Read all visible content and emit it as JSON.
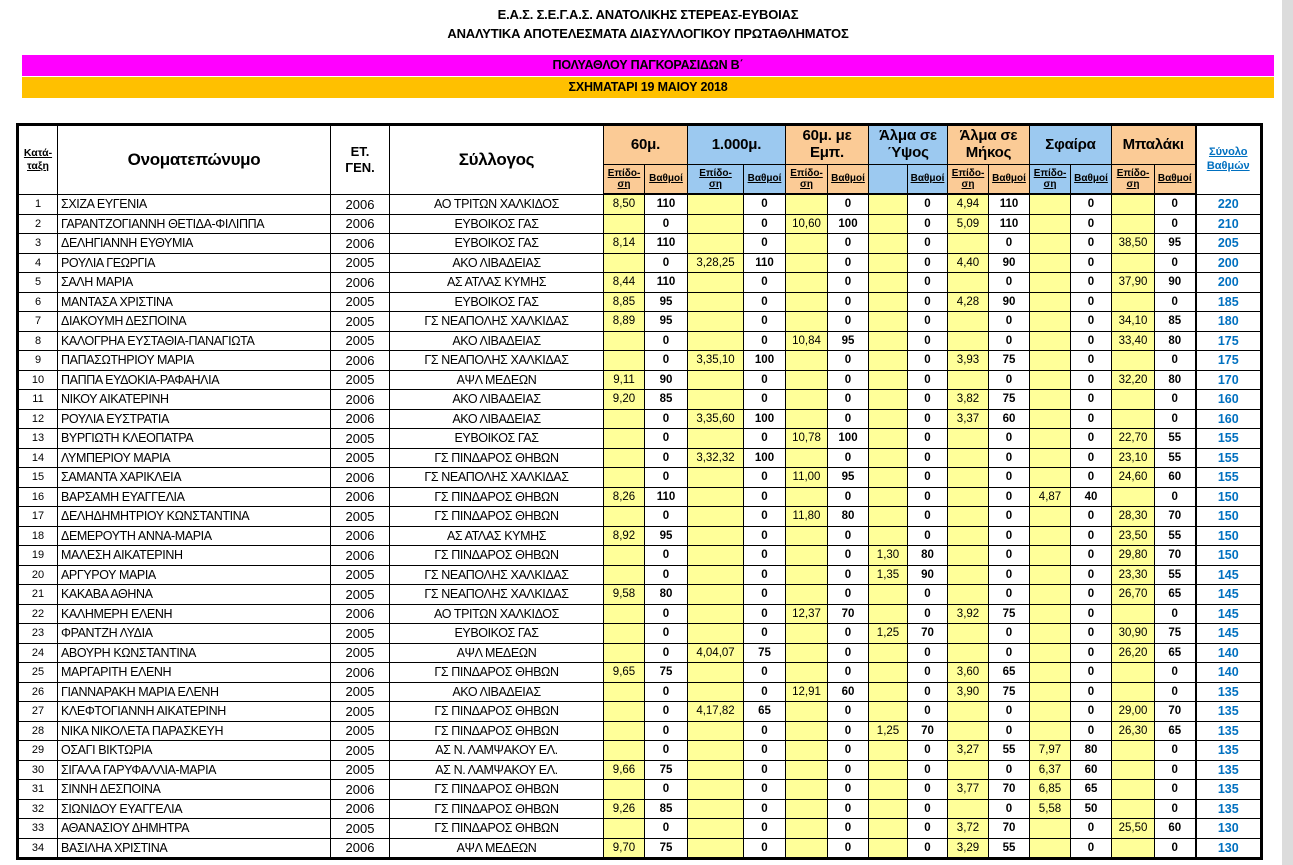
{
  "page": {
    "title_line1": "Ε.Α.Σ. Σ.Ε.Γ.Α.Σ. ΑΝΑΤΟΛΙΚΗΣ ΣΤΕΡΕΑΣ-ΕΥΒΟΙΑΣ",
    "title_line2": "ΑΝΑΛΥΤΙΚΑ ΑΠΟΤΕΛΕΣΜΑΤΑ ΔΙΑΣΥΛΛΟΓΙΚΟΥ ΠΡΩΤΑΘΛΗΜΑΤΟΣ",
    "banner_category": "ΠΟΛΥΑΘΛΟΥ ΠΑΓΚΟΡΑΣΙΔΩΝ  Β΄",
    "banner_event": "ΣΧΗΜΑΤΑΡΙ 19 ΜΑΙΟΥ 2018",
    "colors": {
      "banner_category_bg": "#FF00FF",
      "banner_event_bg": "#FFC000",
      "event_group_orange": "#FBCB96",
      "event_group_blue": "#9CC9F0",
      "performance_cell_bg": "#FFFF99",
      "total_text": "#0070C0"
    }
  },
  "table": {
    "headers": {
      "rank": "Κατά-\nταξη",
      "name": "Ονοματεπώνυμο",
      "year": "ΕΤ.\nΓΕΝ.",
      "club": "Σύλλογος",
      "total": "Σύνολο\nΒαθμών",
      "sub_perf": "Επίδο-\nση",
      "sub_points": "Βαθμοί"
    },
    "events": [
      {
        "label": "60μ.",
        "color": "orange",
        "sub_perf": "Επίδο-\nση",
        "sub_points": "Βαθμοί"
      },
      {
        "label": "1.000μ.",
        "color": "blue",
        "sub_perf": "Επίδο-\nση",
        "sub_points": "Βαθμοί"
      },
      {
        "label": "60μ. με Εμπ.",
        "color": "orange",
        "sub_perf": "Επίδο-\nση",
        "sub_points": "Βαθμοί"
      },
      {
        "label": "Άλμα σε\nΎψος",
        "color": "blue",
        "sub_perf": "",
        "sub_points": "Βαθμοί"
      },
      {
        "label": "Άλμα σε\nΜήκος",
        "color": "orange",
        "sub_perf": "Επίδο-\nση",
        "sub_points": "Βαθμοί"
      },
      {
        "label": "Σφαίρα",
        "color": "blue",
        "sub_perf": "Επίδο-\nση",
        "sub_points": "Βαθμοί"
      },
      {
        "label": "Μπαλάκι",
        "color": "orange",
        "sub_perf": "Επίδο-\nση",
        "sub_points": "Βαθμοί"
      }
    ],
    "rows": [
      {
        "rank": "1",
        "name": "ΣΧΙΖΑ ΕΥΓΕΝΙΑ",
        "year": "2006",
        "club": "ΑΟ ΤΡΙΤΩΝ ΧΑΛΚΙΔΟΣ",
        "marks": [
          "8,50",
          "110",
          "",
          "0",
          "",
          "0",
          "",
          "0",
          "4,94",
          "110",
          "",
          "0",
          "",
          "0"
        ],
        "total": "220"
      },
      {
        "rank": "2",
        "name": "ΓΑΡΑΝΤΖΟΓΙΑΝΝΗ ΘΕΤΙΔΑ-ΦΙΛΙΠΠΑ",
        "year": "2006",
        "club": "ΕΥΒΟΙΚΟΣ ΓΑΣ",
        "marks": [
          "",
          "0",
          "",
          "0",
          "10,60",
          "100",
          "",
          "0",
          "5,09",
          "110",
          "",
          "0",
          "",
          "0"
        ],
        "total": "210"
      },
      {
        "rank": "3",
        "name": "ΔΕΛΗΓΙΑΝΝΗ ΕΥΘΥΜΙΑ",
        "year": "2006",
        "club": "ΕΥΒΟΙΚΟΣ ΓΑΣ",
        "marks": [
          "8,14",
          "110",
          "",
          "0",
          "",
          "0",
          "",
          "0",
          "",
          "0",
          "",
          "0",
          "38,50",
          "95"
        ],
        "total": "205"
      },
      {
        "rank": "4",
        "name": "ΡΟΥΛΙΑ ΓΕΩΡΓΙΑ",
        "year": "2005",
        "club": "ΑΚΟ ΛΙΒΑΔΕΙΑΣ",
        "marks": [
          "",
          "0",
          "3,28,25",
          "110",
          "",
          "0",
          "",
          "0",
          "4,40",
          "90",
          "",
          "0",
          "",
          "0"
        ],
        "total": "200"
      },
      {
        "rank": "5",
        "name": "ΣΑΛΗ ΜΑΡΙΑ",
        "year": "2006",
        "club": "ΑΣ ΑΤΛΑΣ ΚΥΜΗΣ",
        "marks": [
          "8,44",
          "110",
          "",
          "0",
          "",
          "0",
          "",
          "0",
          "",
          "0",
          "",
          "0",
          "37,90",
          "90"
        ],
        "total": "200"
      },
      {
        "rank": "6",
        "name": "ΜΑΝΤΑΣΑ ΧΡΙΣΤΙΝΑ",
        "year": "2005",
        "club": "ΕΥΒΟΙΚΟΣ ΓΑΣ",
        "marks": [
          "8,85",
          "95",
          "",
          "0",
          "",
          "0",
          "",
          "0",
          "4,28",
          "90",
          "",
          "0",
          "",
          "0"
        ],
        "total": "185"
      },
      {
        "rank": "7",
        "name": "ΔΙΑΚΟΥΜΗ ΔΕΣΠΟΙΝΑ",
        "year": "2005",
        "club": "ΓΣ ΝΕΑΠΟΛΗΣ ΧΑΛΚΙΔΑΣ",
        "marks": [
          "8,89",
          "95",
          "",
          "0",
          "",
          "0",
          "",
          "0",
          "",
          "0",
          "",
          "0",
          "34,10",
          "85"
        ],
        "total": "180"
      },
      {
        "rank": "8",
        "name": "ΚΑΛΟΓΡΗΑ ΕΥΣΤΑΘΙΑ-ΠΑΝΑΓΙΩΤΑ",
        "year": "2005",
        "club": "ΑΚΟ ΛΙΒΑΔΕΙΑΣ",
        "marks": [
          "",
          "0",
          "",
          "0",
          "10,84",
          "95",
          "",
          "0",
          "",
          "0",
          "",
          "0",
          "33,40",
          "80"
        ],
        "total": "175"
      },
      {
        "rank": "9",
        "name": "ΠΑΠΑΣΩΤΗΡΙΟΥ ΜΑΡΙΑ",
        "year": "2006",
        "club": "ΓΣ ΝΕΑΠΟΛΗΣ ΧΑΛΚΙΔΑΣ",
        "marks": [
          "",
          "0",
          "3,35,10",
          "100",
          "",
          "0",
          "",
          "0",
          "3,93",
          "75",
          "",
          "0",
          "",
          "0"
        ],
        "total": "175"
      },
      {
        "rank": "10",
        "name": "ΠΑΠΠΑ ΕΥΔΟΚΙΑ-ΡΑΦΑΗΛΙΑ",
        "year": "2005",
        "club": "ΑΨΛ ΜΕΔΕΩΝ",
        "marks": [
          "9,11",
          "90",
          "",
          "0",
          "",
          "0",
          "",
          "0",
          "",
          "0",
          "",
          "0",
          "32,20",
          "80"
        ],
        "total": "170"
      },
      {
        "rank": "11",
        "name": "ΝΙΚΟΥ ΑΙΚΑΤΕΡΙΝΗ",
        "year": "2006",
        "club": "ΑΚΟ ΛΙΒΑΔΕΙΑΣ",
        "marks": [
          "9,20",
          "85",
          "",
          "0",
          "",
          "0",
          "",
          "0",
          "3,82",
          "75",
          "",
          "0",
          "",
          "0"
        ],
        "total": "160"
      },
      {
        "rank": "12",
        "name": "ΡΟΥΛΙΑ ΕΥΣΤΡΑΤΙΑ",
        "year": "2006",
        "club": "ΑΚΟ ΛΙΒΑΔΕΙΑΣ",
        "marks": [
          "",
          "0",
          "3,35,60",
          "100",
          "",
          "0",
          "",
          "0",
          "3,37",
          "60",
          "",
          "0",
          "",
          "0"
        ],
        "total": "160"
      },
      {
        "rank": "13",
        "name": "ΒΥΡΓΙΩΤΗ ΚΛΕΟΠΑΤΡΑ",
        "year": "2005",
        "club": "ΕΥΒΟΙΚΟΣ ΓΑΣ",
        "marks": [
          "",
          "0",
          "",
          "0",
          "10,78",
          "100",
          "",
          "0",
          "",
          "0",
          "",
          "0",
          "22,70",
          "55"
        ],
        "total": "155"
      },
      {
        "rank": "14",
        "name": "ΛΥΜΠΕΡΙΟΥ ΜΑΡΙΑ",
        "year": "2005",
        "club": "ΓΣ ΠΙΝΔΑΡΟΣ ΘΗΒΩΝ",
        "marks": [
          "",
          "0",
          "3,32,32",
          "100",
          "",
          "0",
          "",
          "0",
          "",
          "0",
          "",
          "0",
          "23,10",
          "55"
        ],
        "total": "155"
      },
      {
        "rank": "15",
        "name": "ΣΑΜΑΝΤΑ ΧΑΡΙΚΛΕΙΑ",
        "year": "2006",
        "club": "ΓΣ ΝΕΑΠΟΛΗΣ ΧΑΛΚΙΔΑΣ",
        "marks": [
          "",
          "0",
          "",
          "0",
          "11,00",
          "95",
          "",
          "0",
          "",
          "0",
          "",
          "0",
          "24,60",
          "60"
        ],
        "total": "155"
      },
      {
        "rank": "16",
        "name": "ΒΑΡΣΑΜΗ ΕΥΑΓΓΕΛΙΑ",
        "year": "2006",
        "club": "ΓΣ ΠΙΝΔΑΡΟΣ ΘΗΒΩΝ",
        "marks": [
          "8,26",
          "110",
          "",
          "0",
          "",
          "0",
          "",
          "0",
          "",
          "0",
          "4,87",
          "40",
          "",
          "0"
        ],
        "total": "150"
      },
      {
        "rank": "17",
        "name": "ΔΕΛΗΔΗΜΗΤΡΙΟΥ ΚΩΝΣΤΑΝΤΙΝΑ",
        "year": "2005",
        "club": "ΓΣ ΠΙΝΔΑΡΟΣ ΘΗΒΩΝ",
        "marks": [
          "",
          "0",
          "",
          "0",
          "11,80",
          "80",
          "",
          "0",
          "",
          "0",
          "",
          "0",
          "28,30",
          "70"
        ],
        "total": "150"
      },
      {
        "rank": "18",
        "name": "ΔΕΜΕΡΟΥΤΗ ΑΝΝΑ-ΜΑΡΙΑ",
        "year": "2006",
        "club": "ΑΣ ΑΤΛΑΣ ΚΥΜΗΣ",
        "marks": [
          "8,92",
          "95",
          "",
          "0",
          "",
          "0",
          "",
          "0",
          "",
          "0",
          "",
          "0",
          "23,50",
          "55"
        ],
        "total": "150"
      },
      {
        "rank": "19",
        "name": "ΜΑΛΕΣΗ ΑΙΚΑΤΕΡΙΝΗ",
        "year": "2006",
        "club": "ΓΣ ΠΙΝΔΑΡΟΣ ΘΗΒΩΝ",
        "marks": [
          "",
          "0",
          "",
          "0",
          "",
          "0",
          "1,30",
          "80",
          "",
          "0",
          "",
          "0",
          "29,80",
          "70"
        ],
        "total": "150"
      },
      {
        "rank": "20",
        "name": "ΑΡΓΥΡΟΥ ΜΑΡΙΑ",
        "year": "2005",
        "club": "ΓΣ ΝΕΑΠΟΛΗΣ ΧΑΛΚΙΔΑΣ",
        "marks": [
          "",
          "0",
          "",
          "0",
          "",
          "0",
          "1,35",
          "90",
          "",
          "0",
          "",
          "0",
          "23,30",
          "55"
        ],
        "total": "145"
      },
      {
        "rank": "21",
        "name": "ΚΑΚΑΒΑ ΑΘΗΝΑ",
        "year": "2005",
        "club": "ΓΣ ΝΕΑΠΟΛΗΣ ΧΑΛΚΙΔΑΣ",
        "marks": [
          "9,58",
          "80",
          "",
          "0",
          "",
          "0",
          "",
          "0",
          "",
          "0",
          "",
          "0",
          "26,70",
          "65"
        ],
        "total": "145"
      },
      {
        "rank": "22",
        "name": "ΚΑΛΗΜΕΡΗ ΕΛΕΝΗ",
        "year": "2006",
        "club": "ΑΟ ΤΡΙΤΩΝ ΧΑΛΚΙΔΟΣ",
        "marks": [
          "",
          "0",
          "",
          "0",
          "12,37",
          "70",
          "",
          "0",
          "3,92",
          "75",
          "",
          "0",
          "",
          "0"
        ],
        "total": "145"
      },
      {
        "rank": "23",
        "name": "ΦΡΑΝΤΖΗ ΛΥΔΙΑ",
        "year": "2005",
        "club": "ΕΥΒΟΙΚΟΣ ΓΑΣ",
        "marks": [
          "",
          "0",
          "",
          "0",
          "",
          "0",
          "1,25",
          "70",
          "",
          "0",
          "",
          "0",
          "30,90",
          "75"
        ],
        "total": "145"
      },
      {
        "rank": "24",
        "name": "ΑΒΟΥΡΗ ΚΩΝΣΤΑΝΤΙΝΑ",
        "year": "2005",
        "club": "ΑΨΛ ΜΕΔΕΩΝ",
        "marks": [
          "",
          "0",
          "4,04,07",
          "75",
          "",
          "0",
          "",
          "0",
          "",
          "0",
          "",
          "0",
          "26,20",
          "65"
        ],
        "total": "140"
      },
      {
        "rank": "25",
        "name": "ΜΑΡΓΑΡΙΤΗ ΕΛΕΝΗ",
        "year": "2006",
        "club": "ΓΣ ΠΙΝΔΑΡΟΣ ΘΗΒΩΝ",
        "marks": [
          "9,65",
          "75",
          "",
          "0",
          "",
          "0",
          "",
          "0",
          "3,60",
          "65",
          "",
          "0",
          "",
          "0"
        ],
        "total": "140"
      },
      {
        "rank": "26",
        "name": "ΓΙΑΝΝΑΡΑΚΗ ΜΑΡΙΑ ΕΛΕΝΗ",
        "year": "2005",
        "club": "ΑΚΟ ΛΙΒΑΔΕΙΑΣ",
        "marks": [
          "",
          "0",
          "",
          "0",
          "12,91",
          "60",
          "",
          "0",
          "3,90",
          "75",
          "",
          "0",
          "",
          "0"
        ],
        "total": "135"
      },
      {
        "rank": "27",
        "name": "ΚΛΕΦΤΟΓΙΑΝΝΗ ΑΙΚΑΤΕΡΙΝΗ",
        "year": "2005",
        "club": "ΓΣ ΠΙΝΔΑΡΟΣ ΘΗΒΩΝ",
        "marks": [
          "",
          "0",
          "4,17,82",
          "65",
          "",
          "0",
          "",
          "0",
          "",
          "0",
          "",
          "0",
          "29,00",
          "70"
        ],
        "total": "135"
      },
      {
        "rank": "28",
        "name": "ΝΙΚΑ ΝΙΚΟΛΕΤΑ ΠΑΡΑΣΚΕΥΗ",
        "year": "2005",
        "club": "ΓΣ ΠΙΝΔΑΡΟΣ ΘΗΒΩΝ",
        "marks": [
          "",
          "0",
          "",
          "0",
          "",
          "0",
          "1,25",
          "70",
          "",
          "0",
          "",
          "0",
          "26,30",
          "65"
        ],
        "total": "135"
      },
      {
        "rank": "29",
        "name": "ΟΣΑΓΙ ΒΙΚΤΩΡΙΑ",
        "year": "2005",
        "club": "ΑΣ Ν. ΛΑΜΨΑΚΟΥ ΕΛ.",
        "marks": [
          "",
          "0",
          "",
          "0",
          "",
          "0",
          "",
          "0",
          "3,27",
          "55",
          "7,97",
          "80",
          "",
          "0"
        ],
        "total": "135"
      },
      {
        "rank": "30",
        "name": "ΣΙΓΑΛΑ ΓΑΡΥΦΑΛΛΙΑ-ΜΑΡΙΑ",
        "year": "2005",
        "club": "ΑΣ Ν. ΛΑΜΨΑΚΟΥ ΕΛ.",
        "marks": [
          "9,66",
          "75",
          "",
          "0",
          "",
          "0",
          "",
          "0",
          "",
          "0",
          "6,37",
          "60",
          "",
          "0"
        ],
        "total": "135"
      },
      {
        "rank": "31",
        "name": "ΣΙΝΝΗ ΔΕΣΠΟΙΝΑ",
        "year": "2006",
        "club": "ΓΣ ΠΙΝΔΑΡΟΣ ΘΗΒΩΝ",
        "marks": [
          "",
          "0",
          "",
          "0",
          "",
          "0",
          "",
          "0",
          "3,77",
          "70",
          "6,85",
          "65",
          "",
          "0"
        ],
        "total": "135"
      },
      {
        "rank": "32",
        "name": "ΣΙΩΝΙΔΟΥ ΕΥΑΓΓΕΛΙΑ",
        "year": "2006",
        "club": "ΓΣ ΠΙΝΔΑΡΟΣ ΘΗΒΩΝ",
        "marks": [
          "9,26",
          "85",
          "",
          "0",
          "",
          "0",
          "",
          "0",
          "",
          "0",
          "5,58",
          "50",
          "",
          "0"
        ],
        "total": "135"
      },
      {
        "rank": "33",
        "name": "ΑΘΑΝΑΣΙΟΥ ΔΗΜΗΤΡΑ",
        "year": "2005",
        "club": "ΓΣ ΠΙΝΔΑΡΟΣ ΘΗΒΩΝ",
        "marks": [
          "",
          "0",
          "",
          "0",
          "",
          "0",
          "",
          "0",
          "3,72",
          "70",
          "",
          "0",
          "25,50",
          "60"
        ],
        "total": "130"
      },
      {
        "rank": "34",
        "name": "ΒΑΣΙΛΗΑ ΧΡΙΣΤΙΝΑ",
        "year": "2006",
        "club": "ΑΨΛ ΜΕΔΕΩΝ",
        "marks": [
          "9,70",
          "75",
          "",
          "0",
          "",
          "0",
          "",
          "0",
          "3,29",
          "55",
          "",
          "0",
          "",
          "0"
        ],
        "total": "130"
      }
    ]
  }
}
